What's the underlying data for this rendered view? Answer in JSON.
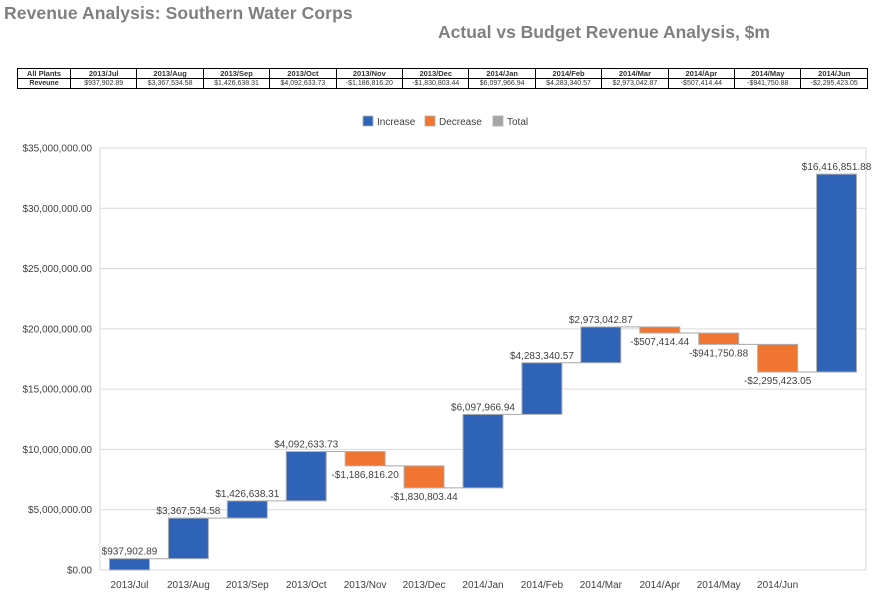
{
  "page_title": "Revenue Analysis: Southern Water Corps",
  "table": {
    "header_label": "All Plants",
    "row_label": "Reveune",
    "periods": [
      "2013/Jul",
      "2013/Aug",
      "2013/Sep",
      "2013/Oct",
      "2013/Nov",
      "2013/Dec",
      "2014/Jan",
      "2014/Feb",
      "2014/Mar",
      "2014/Apr",
      "2014/May",
      "2014/Jun"
    ],
    "values": [
      "$937,902.89",
      "$3,367,534.58",
      "$1,426,638.31",
      "$4,092,633.73",
      "-$1,186,816.20",
      "-$1,830,803.44",
      "$6,097,966.94",
      "$4,283,340.57",
      "$2,973,042.87",
      "-$507,414.44",
      "-$941,750.88",
      "-$2,295,423.05"
    ]
  },
  "colors": {
    "increase": "#2E63B8",
    "decrease": "#F07530",
    "total": "#A5A5A5",
    "grid": "#D9D9D9",
    "bar_border": "#B0B0B0"
  },
  "chart_data": {
    "type": "waterfall",
    "title": "Actual vs Budget Revenue Analysis, $m",
    "legend": [
      {
        "key": "increase",
        "label": "Increase"
      },
      {
        "key": "decrease",
        "label": "Decrease"
      },
      {
        "key": "total",
        "label": "Total"
      }
    ],
    "legend_position": "top-center",
    "categories": [
      "2013/Jul",
      "2013/Aug",
      "2013/Sep",
      "2013/Oct",
      "2013/Nov",
      "2013/Dec",
      "2014/Jan",
      "2014/Feb",
      "2014/Mar",
      "2014/Apr",
      "2014/May",
      "2014/Jun",
      ""
    ],
    "values": [
      937902.89,
      3367534.58,
      1426638.31,
      4092633.73,
      -1186816.2,
      -1830803.44,
      6097966.94,
      4283340.57,
      2973042.87,
      -507414.44,
      -941750.88,
      -2295423.05,
      16416851.88
    ],
    "kinds": [
      "increase",
      "increase",
      "increase",
      "increase",
      "decrease",
      "decrease",
      "increase",
      "increase",
      "increase",
      "decrease",
      "decrease",
      "decrease",
      "increase"
    ],
    "starts": [
      0,
      937902.89,
      4305437.47,
      5732075.78,
      9824709.51,
      8637893.31,
      6807089.87,
      12905056.81,
      17188397.38,
      20161440.25,
      19654025.81,
      18712274.93,
      16416851.88
    ],
    "labels": [
      "$937,902.89",
      "$3,367,534.58",
      "$1,426,638.31",
      "$4,092,633.73",
      "-$1,186,816.20",
      "-$1,830,803.44",
      "$6,097,966.94",
      "$4,283,340.57",
      "$2,973,042.87",
      "-$507,414.44",
      "-$941,750.88",
      "-$2,295,423.05",
      "$16,416,851.88"
    ],
    "ylim": [
      0,
      35000000
    ],
    "yticks": [
      0,
      5000000,
      10000000,
      15000000,
      20000000,
      25000000,
      30000000,
      35000000
    ],
    "ytick_labels": [
      "$0.00",
      "$5,000,000.00",
      "$10,000,000.00",
      "$15,000,000.00",
      "$20,000,000.00",
      "$25,000,000.00",
      "$30,000,000.00",
      "$35,000,000.00"
    ],
    "grid": true
  }
}
